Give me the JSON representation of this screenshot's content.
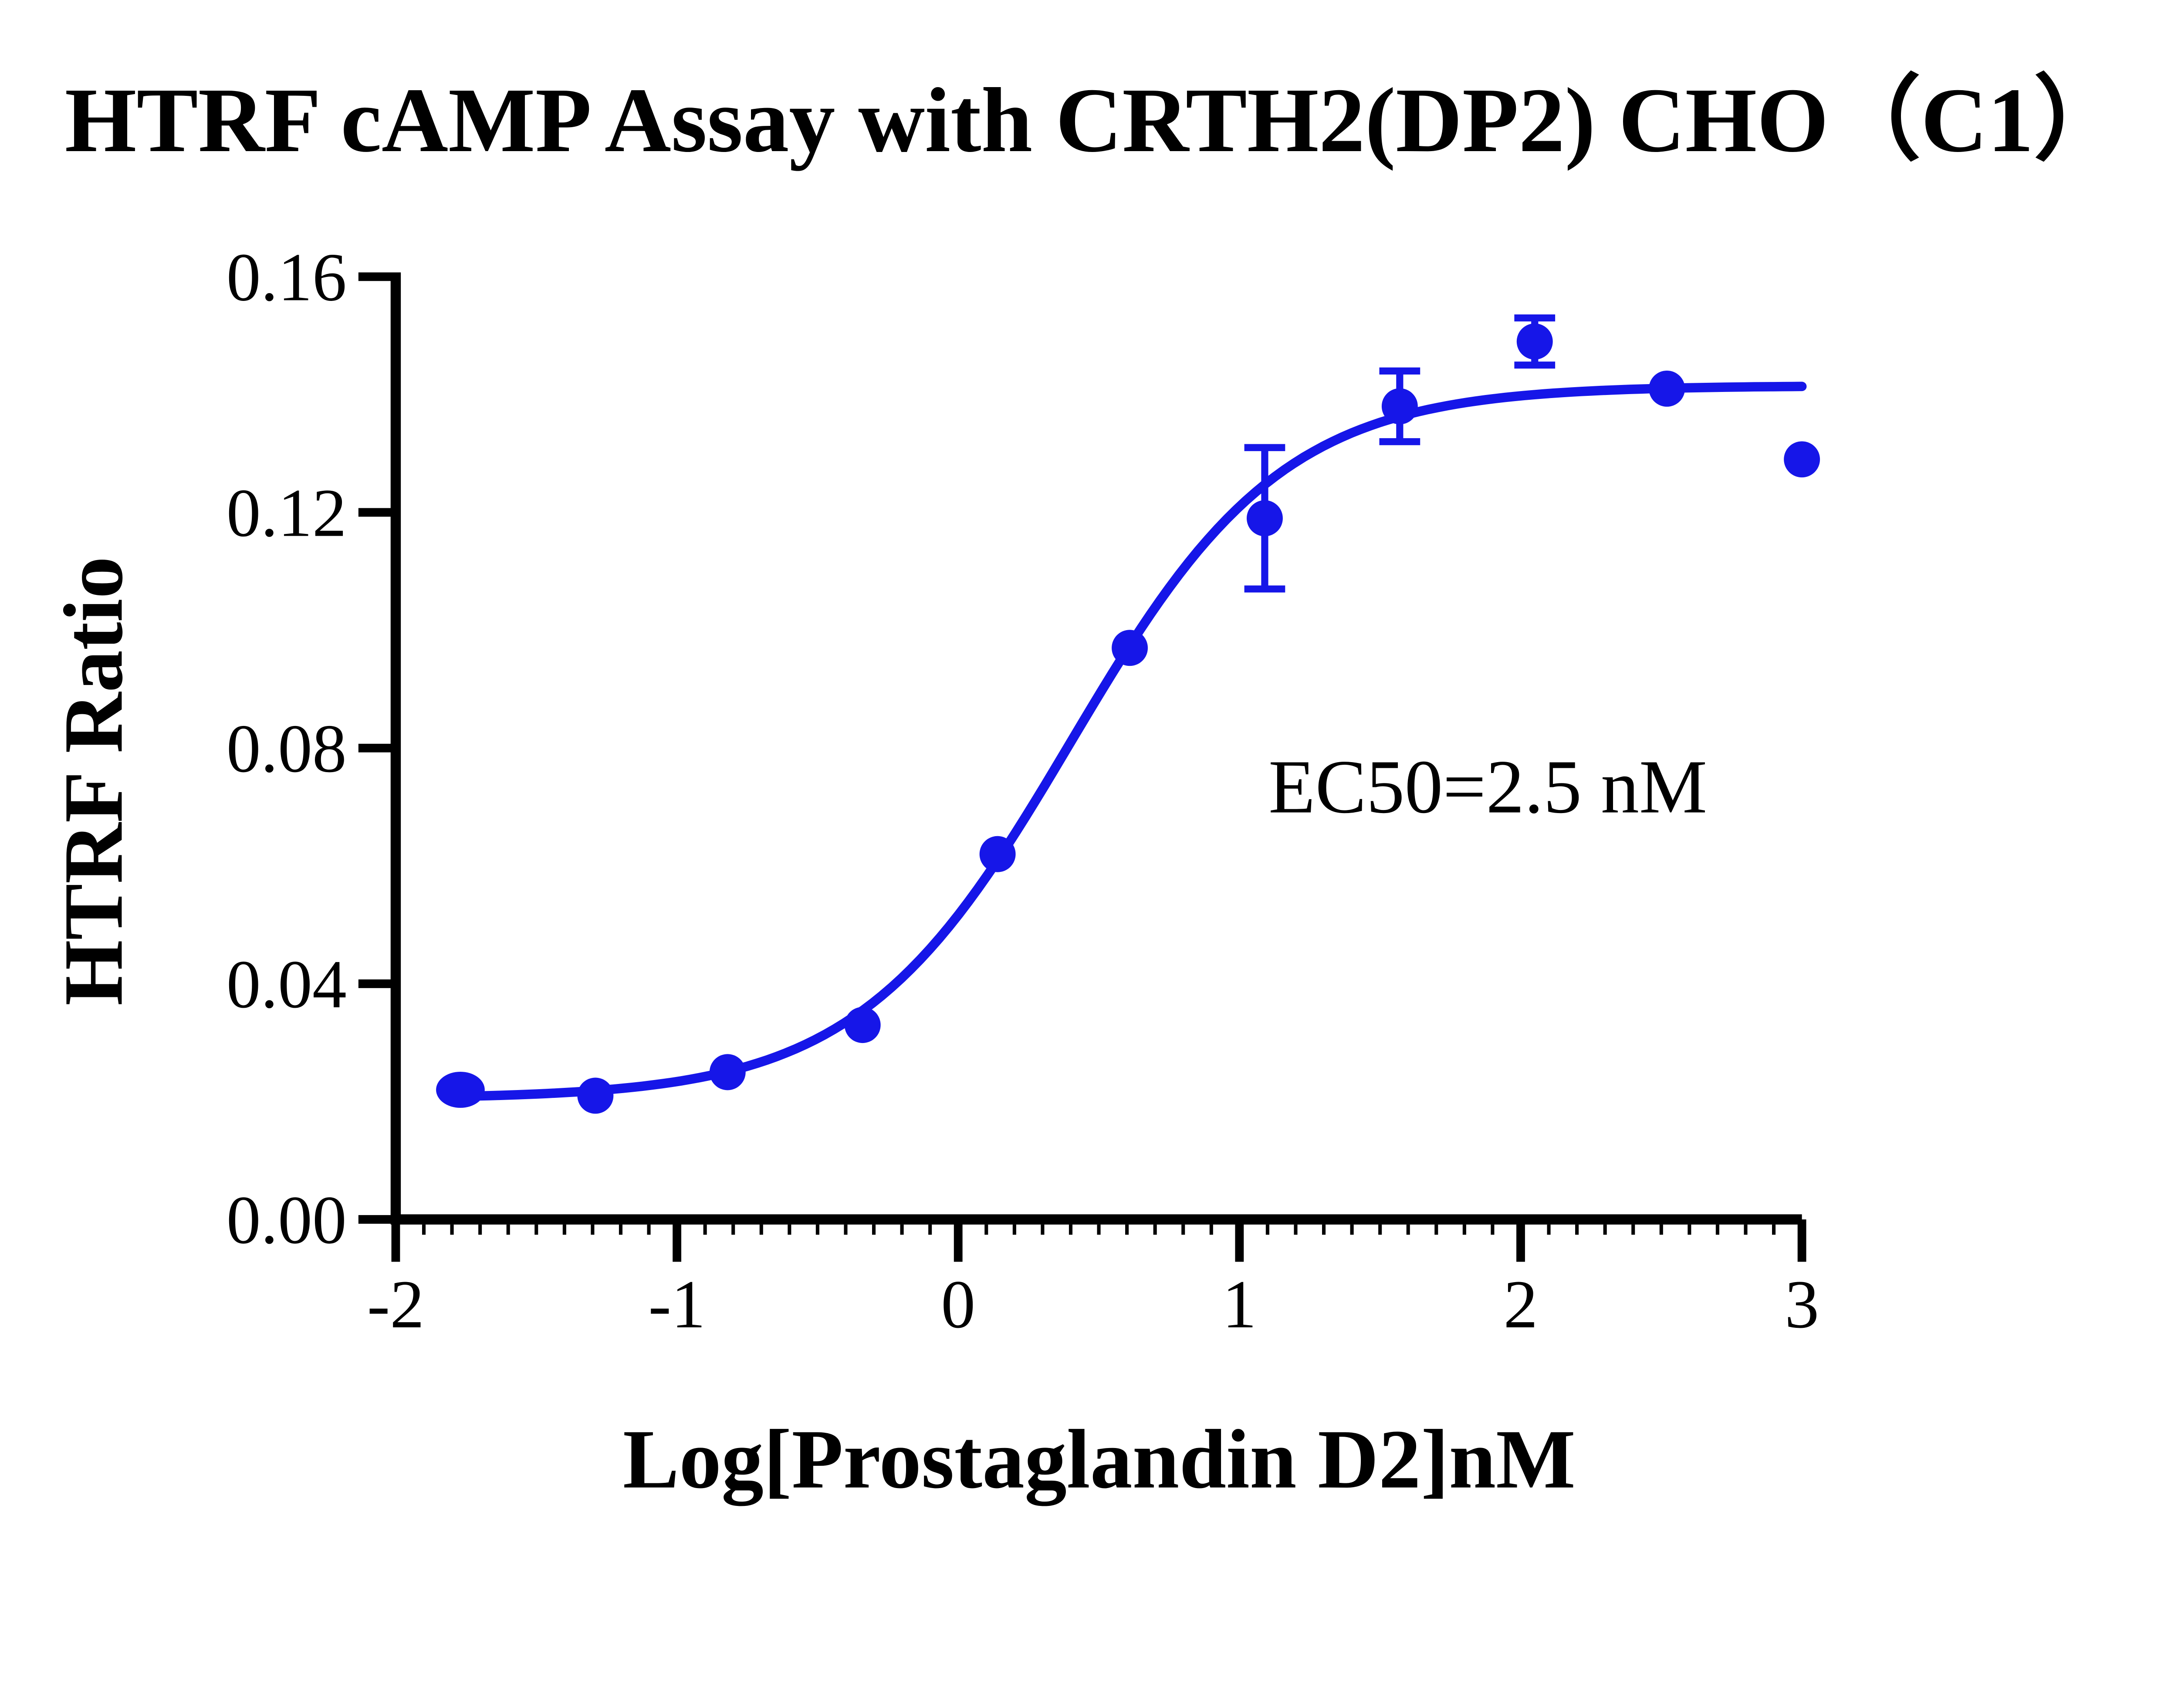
{
  "title": "HTRF cAMP Assay with CRTH2(DP2) CHO（C1）",
  "chart_data": {
    "type": "scatter",
    "title": "HTRF cAMP Assay with CRTH2(DP2) CHO（C1）",
    "xlabel": "Log[Prostaglandin D2]nM",
    "ylabel": "HTRF Ratio",
    "annotation": "EC50=2.5 nM",
    "ec50_nM": 2.5,
    "xlim": [
      -2,
      3
    ],
    "ylim": [
      0,
      0.16
    ],
    "x_ticks": [
      -2,
      -1,
      0,
      1,
      2,
      3
    ],
    "x_tick_labels": [
      "-2",
      "-1",
      "0",
      "1",
      "2",
      "3"
    ],
    "x_minor_step": 0.1,
    "y_ticks": [
      0.0,
      0.04,
      0.08,
      0.12,
      0.16
    ],
    "y_tick_labels": [
      "0.00",
      "0.04",
      "0.08",
      "0.12",
      "0.16"
    ],
    "grid": false,
    "legend": "none",
    "series": [
      {
        "name": "Prostaglandin D2",
        "color": "#1616E8",
        "points": [
          {
            "x": -1.77,
            "y": 0.022,
            "err": 0,
            "rx": 62
          },
          {
            "x": -1.29,
            "y": 0.021,
            "err": 0
          },
          {
            "x": -0.82,
            "y": 0.025,
            "err": 0
          },
          {
            "x": -0.34,
            "y": 0.033,
            "err": 0
          },
          {
            "x": 0.14,
            "y": 0.062,
            "err": 0
          },
          {
            "x": 0.61,
            "y": 0.097,
            "err": 0
          },
          {
            "x": 1.09,
            "y": 0.119,
            "err": 0.012
          },
          {
            "x": 1.57,
            "y": 0.138,
            "err": 0.006
          },
          {
            "x": 2.05,
            "y": 0.149,
            "err": 0.004
          },
          {
            "x": 2.52,
            "y": 0.141,
            "err": 0
          },
          {
            "x": 3.0,
            "y": 0.129,
            "err": 0
          }
        ]
      }
    ],
    "fit_curve": {
      "model": "4PL",
      "bottom": 0.0205,
      "top": 0.1415,
      "logEC50": 0.4,
      "hill": 1.15,
      "x_start": -1.77,
      "x_end": 3.0
    }
  }
}
